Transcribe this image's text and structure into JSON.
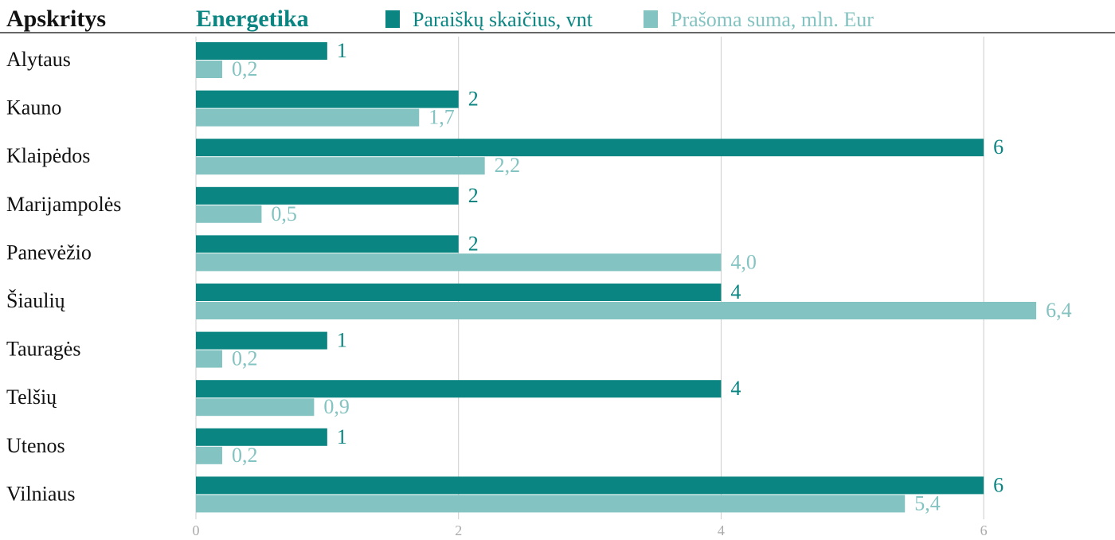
{
  "chart_data": {
    "type": "bar",
    "orientation": "horizontal",
    "title": "Energetika",
    "category_header": "Apskritys",
    "categories": [
      "Alytaus",
      "Kauno",
      "Klaipėdos",
      "Marijampolės",
      "Panevėžio",
      "Šiaulių",
      "Tauragės",
      "Telšių",
      "Utenos",
      "Vilniaus"
    ],
    "series": [
      {
        "name": "Paraiškų skaičius, vnt",
        "color": "#0a8582",
        "values": [
          1,
          2,
          6,
          2,
          2,
          4,
          1,
          4,
          1,
          6
        ]
      },
      {
        "name": "Prašoma suma, mln. Eur",
        "color": "#83c3c1",
        "values": [
          0.2,
          1.7,
          2.2,
          0.5,
          4.0,
          6.4,
          0.2,
          0.9,
          0.2,
          5.4
        ],
        "value_labels": [
          "0,2",
          "1,7",
          "2,2",
          "0,5",
          "4,0",
          "6,4",
          "0,2",
          "0,9",
          "0,2",
          "5,4"
        ]
      }
    ],
    "xlim": [
      0,
      7
    ],
    "xticks": [
      0,
      2,
      4,
      6
    ],
    "grid": true
  }
}
